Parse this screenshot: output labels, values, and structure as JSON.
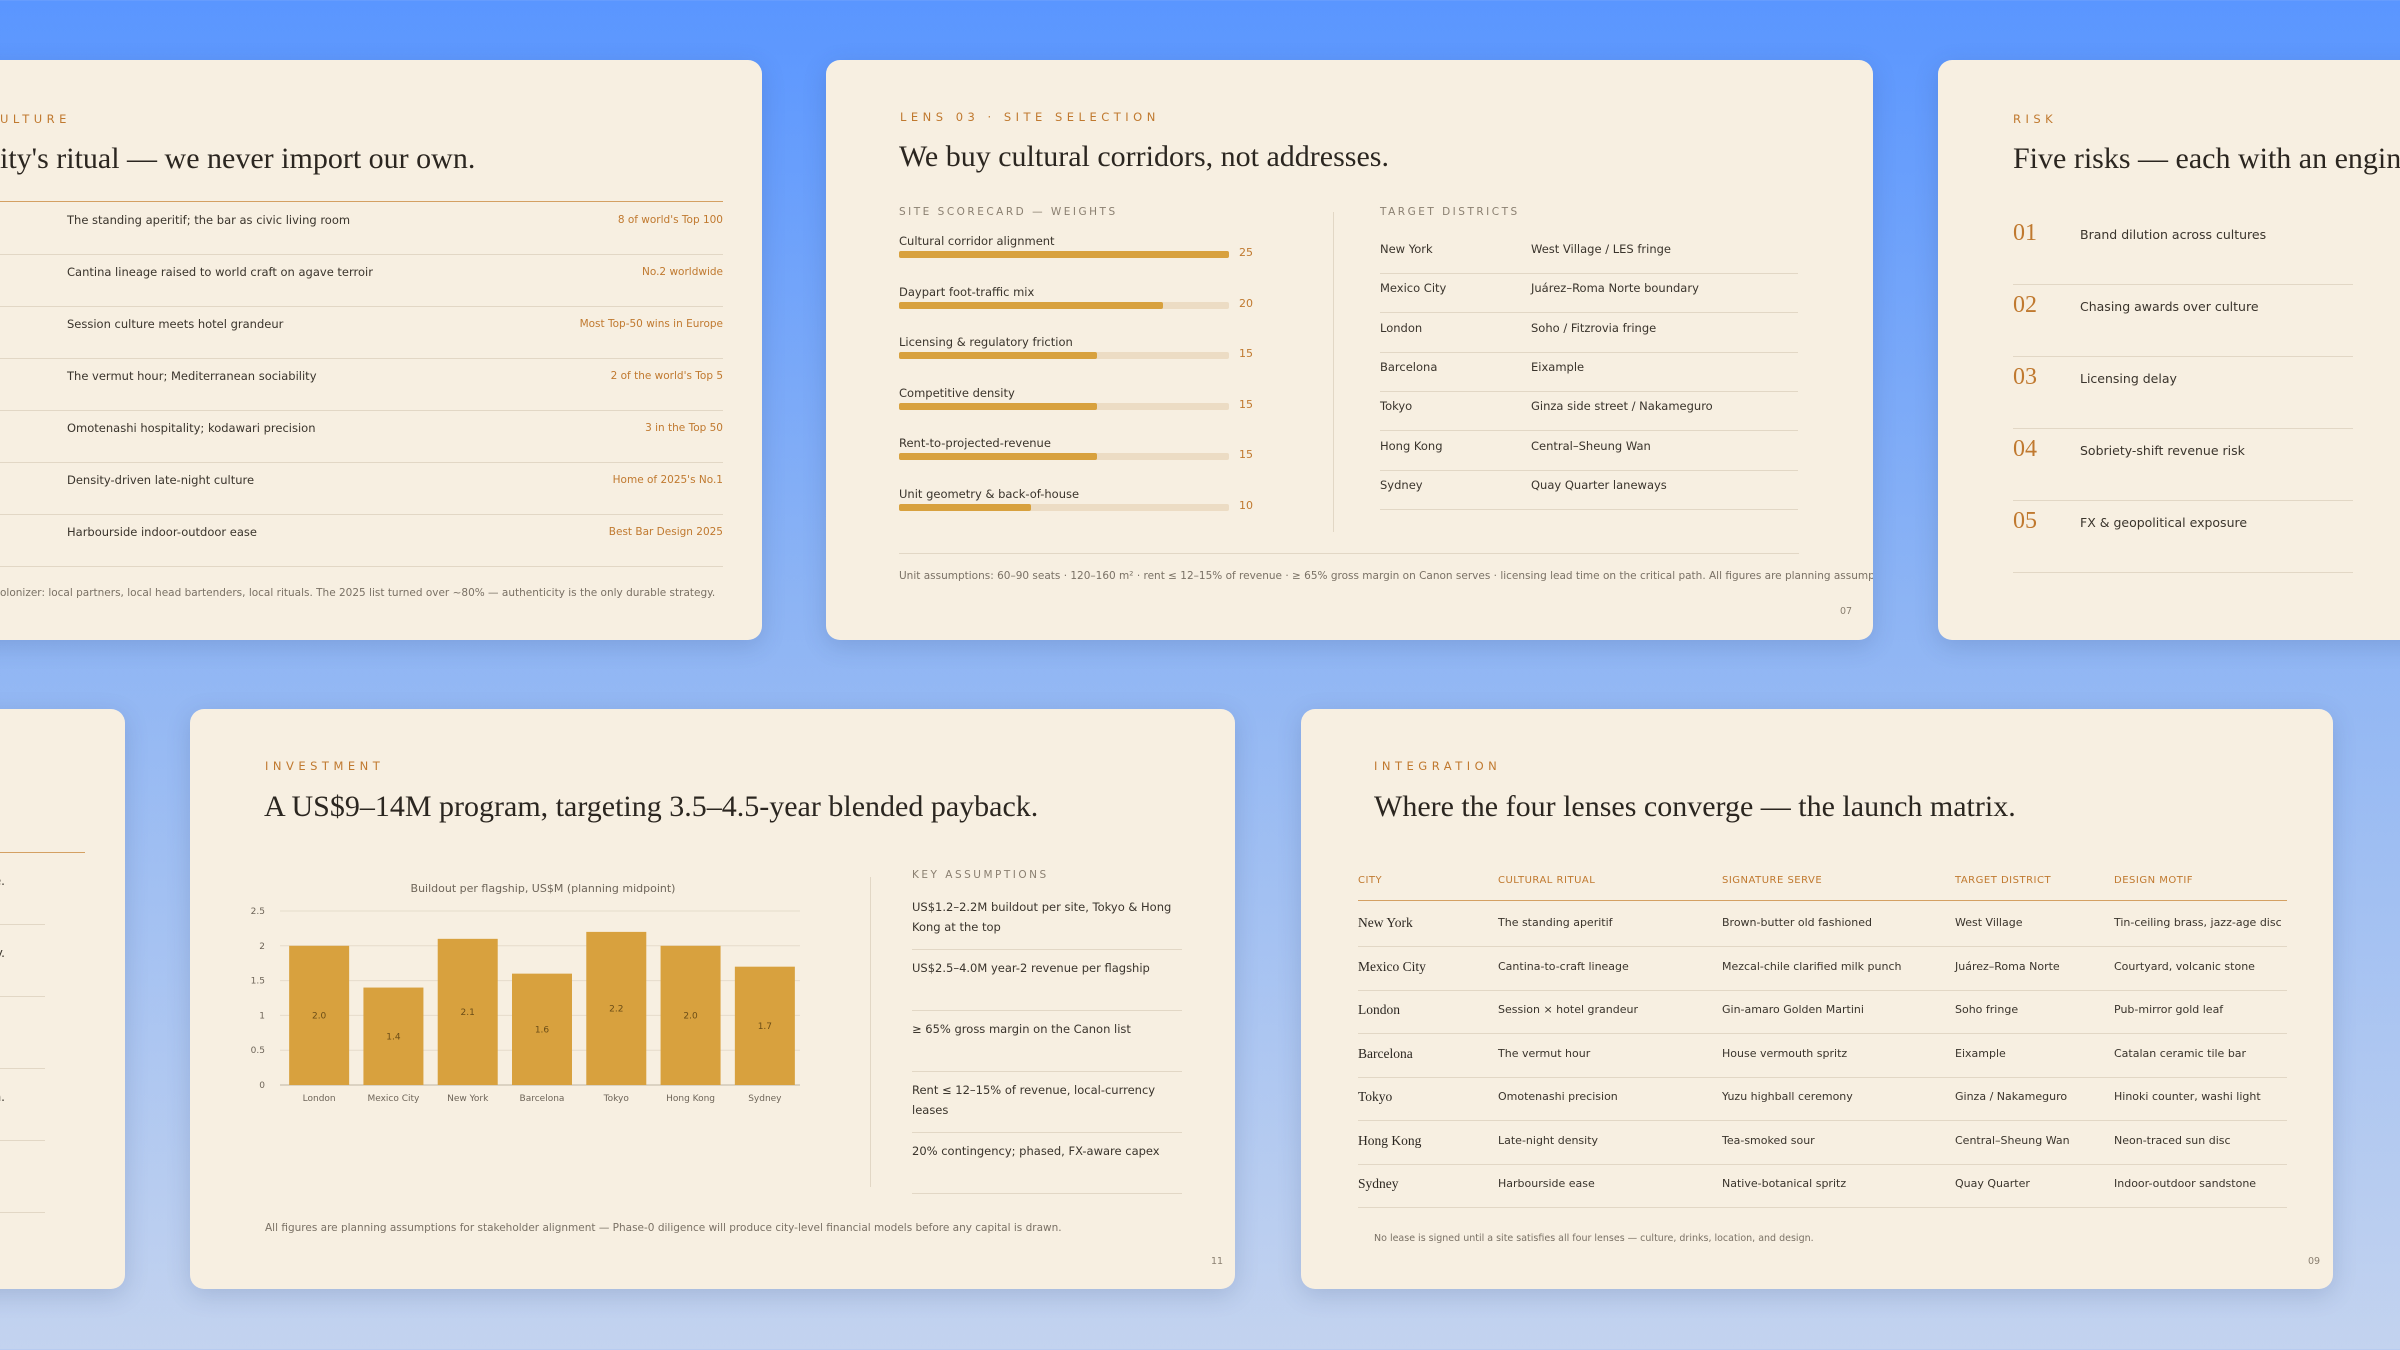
{
  "culture": {
    "eyebrow": "ULTURE",
    "title": "ity's ritual — we never import our own.",
    "rows": [
      {
        "text": "The standing aperitif; the bar as civic living room",
        "tag": "8 of world's Top 100"
      },
      {
        "text": "Cantina lineage raised to world craft on agave terroir",
        "tag": "No.2 worldwide"
      },
      {
        "text": "Session culture meets hotel grandeur",
        "tag": "Most Top-50 wins in Europe"
      },
      {
        "text": "The vermut hour; Mediterranean sociability",
        "tag": "2 of the world's Top 5"
      },
      {
        "text": "Omotenashi hospitality; kodawari precision",
        "tag": "3 in the Top 50"
      },
      {
        "text": "Density-driven late-night culture",
        "tag": "Home of 2025's No.1"
      },
      {
        "text": "Harbourside indoor-outdoor ease",
        "tag": "Best Bar Design 2025"
      }
    ],
    "footnote": "olonizer: local partners, local head bartenders, local rituals. The 2025 list turned over ~80% — authenticity is the only durable strategy."
  },
  "site": {
    "eyebrow": "LENS 03 · SITE SELECTION",
    "title": "We buy cultural corridors, not addresses.",
    "scorecard_label": "SITE SCORECARD — WEIGHTS",
    "scorecard": [
      {
        "name": "Cultural corridor alignment",
        "value": 25
      },
      {
        "name": "Daypart foot-traffic mix",
        "value": 20
      },
      {
        "name": "Licensing & regulatory friction",
        "value": 15
      },
      {
        "name": "Competitive density",
        "value": 15
      },
      {
        "name": "Rent-to-projected-revenue",
        "value": 15
      },
      {
        "name": "Unit geometry & back-of-house",
        "value": 10
      }
    ],
    "districts_label": "TARGET DISTRICTS",
    "districts": [
      {
        "city": "New York",
        "district": "West Village / LES fringe"
      },
      {
        "city": "Mexico City",
        "district": "Juárez–Roma Norte boundary"
      },
      {
        "city": "London",
        "district": "Soho / Fitzrovia fringe"
      },
      {
        "city": "Barcelona",
        "district": "Eixample"
      },
      {
        "city": "Tokyo",
        "district": "Ginza side street / Nakameguro"
      },
      {
        "city": "Hong Kong",
        "district": "Central–Sheung Wan"
      },
      {
        "city": "Sydney",
        "district": "Quay Quarter laneways"
      }
    ],
    "footnote": "Unit assumptions: 60–90 seats · 120–160 m² · rent ≤ 12–15% of revenue · ≥ 65% gross margin on Canon serves · licensing lead time on the critical path. All figures are planning assumptions.",
    "page": "07"
  },
  "risk": {
    "eyebrow": "RISK",
    "title": "Five risks — each with an enginee",
    "items": [
      {
        "num": "01",
        "text": "Brand dilution across cultures"
      },
      {
        "num": "02",
        "text": "Chasing awards over culture"
      },
      {
        "num": "03",
        "text": "Licensing delay"
      },
      {
        "num": "04",
        "text": "Sobriety-shift revenue risk"
      },
      {
        "num": "05",
        "text": "FX & geopolitical exposure"
      }
    ]
  },
  "partial": {
    "rows": [
      "nce.",
      "not legacy.",
      "",
      "lization.",
      ""
    ]
  },
  "investment": {
    "eyebrow": "INVESTMENT",
    "title": "A US$9–14M program, targeting 3.5–4.5-year blended payback.",
    "assumptions_label": "KEY ASSUMPTIONS",
    "assumptions": [
      "US$1.2–2.2M buildout per site, Tokyo & Hong Kong at the top",
      "US$2.5–4.0M year-2 revenue per flagship",
      "≥ 65% gross margin on the Canon list",
      "Rent ≤ 12–15% of revenue, local-currency leases",
      "20% contingency; phased, FX-aware capex"
    ],
    "footnote": "All figures are planning assumptions for stakeholder alignment — Phase-0 diligence will produce city-level financial models before any capital is drawn.",
    "page": "11"
  },
  "chart_data": {
    "type": "bar",
    "title": "Buildout per flagship, US$M (planning midpoint)",
    "categories": [
      "London",
      "Mexico City",
      "New York",
      "Barcelona",
      "Tokyo",
      "Hong Kong",
      "Sydney"
    ],
    "values": [
      2.0,
      1.4,
      2.1,
      1.6,
      2.2,
      2.0,
      1.7
    ],
    "data_labels": [
      "2.0",
      "1.4",
      "2.1",
      "1.6",
      "2.2",
      "2.0",
      "1.7"
    ],
    "yticks": [
      "0",
      "0.5",
      "1",
      "1.5",
      "2",
      "2.5"
    ],
    "ylim": [
      0,
      2.5
    ],
    "grid": true,
    "bar_color": "#d8a13e"
  },
  "integration": {
    "eyebrow": "INTEGRATION",
    "title": "Where the four lenses converge — the launch matrix.",
    "headers": [
      "CITY",
      "CULTURAL RITUAL",
      "SIGNATURE SERVE",
      "TARGET DISTRICT",
      "DESIGN MOTIF"
    ],
    "rows": [
      [
        "New York",
        "The standing aperitif",
        "Brown-butter old fashioned",
        "West Village",
        "Tin-ceiling brass, jazz-age disc"
      ],
      [
        "Mexico City",
        "Cantina-to-craft lineage",
        "Mezcal-chile clarified milk punch",
        "Juárez–Roma Norte",
        "Courtyard, volcanic stone"
      ],
      [
        "London",
        "Session × hotel grandeur",
        "Gin-amaro Golden Martini",
        "Soho fringe",
        "Pub-mirror gold leaf"
      ],
      [
        "Barcelona",
        "The vermut hour",
        "House vermouth spritz",
        "Eixample",
        "Catalan ceramic tile bar"
      ],
      [
        "Tokyo",
        "Omotenashi precision",
        "Yuzu highball ceremony",
        "Ginza / Nakameguro",
        "Hinoki counter, washi light"
      ],
      [
        "Hong Kong",
        "Late-night density",
        "Tea-smoked sour",
        "Central–Sheung Wan",
        "Neon-traced sun disc"
      ],
      [
        "Sydney",
        "Harbourside ease",
        "Native-botanical spritz",
        "Quay Quarter",
        "Indoor-outdoor sandstone"
      ]
    ],
    "footnote": "No lease is signed until a site satisfies all four lenses — culture, drinks, location, and design.",
    "page": "09"
  },
  "colors": {
    "accent": "#c0792f",
    "bar": "#d8a13e",
    "card": "#f7efe1",
    "background_top": "#5a96ff"
  }
}
